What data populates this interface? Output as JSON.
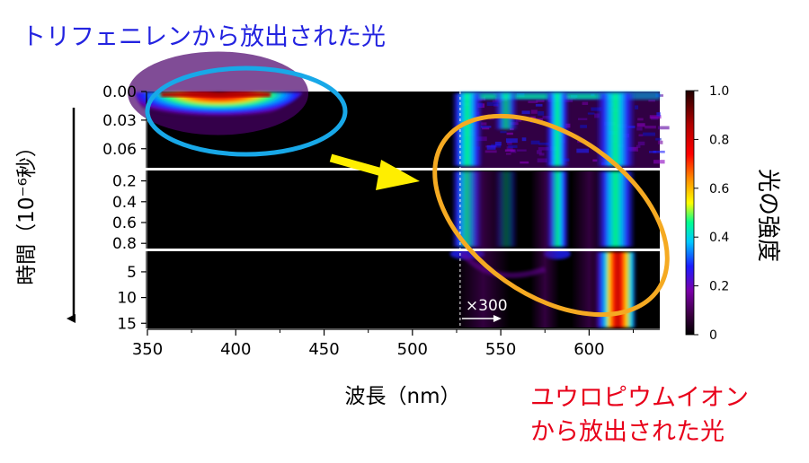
{
  "chart_data": {
    "type": "heatmap",
    "title": "",
    "xlabel": "波長（nm）",
    "ylabel": "時間（10⁻⁶秒）",
    "colorbar_label": "光の強度",
    "xlim": [
      350,
      640
    ],
    "x_ticks": [
      350,
      400,
      450,
      500,
      550,
      600
    ],
    "y_panels": [
      {
        "range": [
          0.0,
          0.08
        ],
        "ticks": [
          "0.00",
          "0.03",
          "0.06"
        ]
      },
      {
        "range": [
          0.1,
          0.85
        ],
        "ticks": [
          "0.2",
          "0.4",
          "0.6",
          "0.8"
        ]
      },
      {
        "range": [
          1.0,
          16.0
        ],
        "ticks": [
          "5",
          "10",
          "15"
        ]
      }
    ],
    "colorbar": {
      "range": [
        0.0,
        1.0
      ],
      "ticks": [
        "0",
        "0.2",
        "0.4",
        "0.6",
        "0.8",
        "1.0"
      ]
    },
    "scale_marker": {
      "x": 527,
      "label": "×300"
    },
    "emission_bands": [
      {
        "name": "triphenylene",
        "center": 390,
        "halfwidth": 45,
        "max_time": 0.04
      },
      {
        "name": "eu-band-a",
        "center": 531,
        "halfwidth": 4
      },
      {
        "name": "eu-band-b",
        "center": 553,
        "halfwidth": 3
      },
      {
        "name": "eu-band-c",
        "center": 582,
        "halfwidth": 3
      },
      {
        "name": "eu-band-d",
        "center": 615,
        "halfwidth": 5
      }
    ]
  },
  "annotations": {
    "triphenylene": "トリフェニレンから放出された光",
    "europium_line1": "ユウロピウムイオン",
    "europium_line2": "から放出された光"
  },
  "colors": {
    "blue_text": "#2323e0",
    "red_text": "#e8001a",
    "cyan_ellipse": "#18a8e8",
    "orange_ellipse": "#f5aa22",
    "arrow_yellow": "#ffee00"
  }
}
